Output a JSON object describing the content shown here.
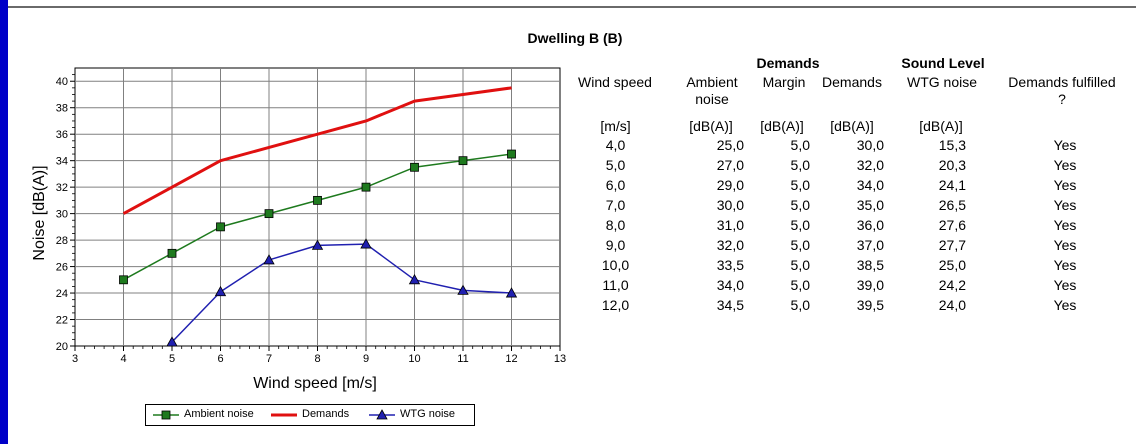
{
  "title": "Dwelling B (B)",
  "colors": {
    "ambient": "#1e7a1e",
    "demands": "#e01010",
    "wtg": "#2020b0",
    "frame": "#0000c8",
    "grid": "#808080"
  },
  "chart_data": {
    "type": "line",
    "xlabel": "Wind speed [m/s]",
    "ylabel": "Noise [dB(A)]",
    "xlim": [
      3,
      13
    ],
    "ylim": [
      20,
      41
    ],
    "x_ticks": [
      "3",
      "4",
      "5",
      "6",
      "7",
      "8",
      "9",
      "10",
      "11",
      "12",
      "13"
    ],
    "y_ticks": [
      "20",
      "22",
      "24",
      "26",
      "28",
      "30",
      "32",
      "34",
      "36",
      "38",
      "40"
    ],
    "grid": true,
    "legend_position": "bottom",
    "x": [
      4,
      5,
      6,
      7,
      8,
      9,
      10,
      11,
      12
    ],
    "series": [
      {
        "name": "Ambient noise",
        "marker": "square",
        "values": [
          25.0,
          27.0,
          29.0,
          30.0,
          31.0,
          32.0,
          33.5,
          34.0,
          34.5
        ]
      },
      {
        "name": "Demands",
        "marker": "none",
        "values": [
          30.0,
          32.0,
          34.0,
          35.0,
          36.0,
          37.0,
          38.5,
          39.0,
          39.5
        ]
      },
      {
        "name": "WTG noise",
        "marker": "triangle",
        "values": [
          null,
          20.3,
          24.1,
          26.5,
          27.6,
          27.7,
          25.0,
          24.2,
          24.0
        ]
      }
    ]
  },
  "table": {
    "group_headers": {
      "demands": "Demands",
      "sound_level": "Sound Level"
    },
    "headers": {
      "wind_speed": "Wind speed",
      "ambient_1": "Ambient",
      "ambient_2": "noise",
      "margin": "Margin",
      "demands": "Demands",
      "wtg": "WTG noise",
      "fulfilled_1": "Demands fulfilled",
      "fulfilled_2": "?"
    },
    "units": {
      "wind_speed": "[m/s]",
      "ambient": "[dB(A)]",
      "margin": "[dB(A)]",
      "demands": "[dB(A)]",
      "wtg": "[dB(A)]"
    },
    "rows": [
      {
        "wind": "4,0",
        "ambient": "25,0",
        "margin": "5,0",
        "demands": "30,0",
        "wtg": "15,3",
        "fulfilled": "Yes"
      },
      {
        "wind": "5,0",
        "ambient": "27,0",
        "margin": "5,0",
        "demands": "32,0",
        "wtg": "20,3",
        "fulfilled": "Yes"
      },
      {
        "wind": "6,0",
        "ambient": "29,0",
        "margin": "5,0",
        "demands": "34,0",
        "wtg": "24,1",
        "fulfilled": "Yes"
      },
      {
        "wind": "7,0",
        "ambient": "30,0",
        "margin": "5,0",
        "demands": "35,0",
        "wtg": "26,5",
        "fulfilled": "Yes"
      },
      {
        "wind": "8,0",
        "ambient": "31,0",
        "margin": "5,0",
        "demands": "36,0",
        "wtg": "27,6",
        "fulfilled": "Yes"
      },
      {
        "wind": "9,0",
        "ambient": "32,0",
        "margin": "5,0",
        "demands": "37,0",
        "wtg": "27,7",
        "fulfilled": "Yes"
      },
      {
        "wind": "10,0",
        "ambient": "33,5",
        "margin": "5,0",
        "demands": "38,5",
        "wtg": "25,0",
        "fulfilled": "Yes"
      },
      {
        "wind": "11,0",
        "ambient": "34,0",
        "margin": "5,0",
        "demands": "39,0",
        "wtg": "24,2",
        "fulfilled": "Yes"
      },
      {
        "wind": "12,0",
        "ambient": "34,5",
        "margin": "5,0",
        "demands": "39,5",
        "wtg": "24,0",
        "fulfilled": "Yes"
      }
    ]
  }
}
